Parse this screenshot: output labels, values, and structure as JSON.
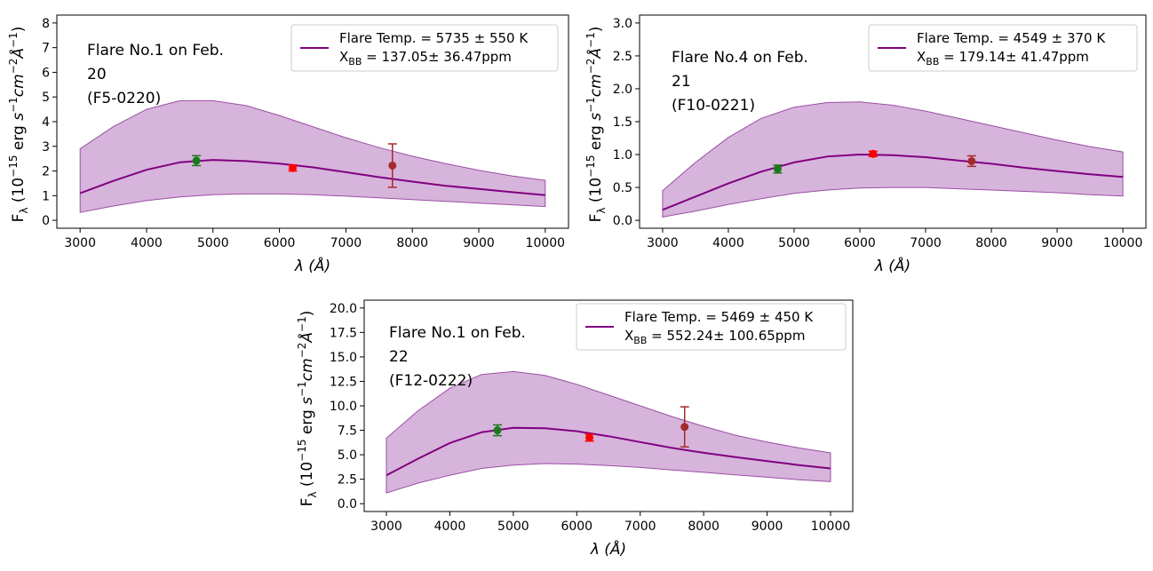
{
  "chart_data": [
    {
      "type": "line",
      "xlabel": "λ (Å)",
      "ylabel_html": "F_λ (10^-15 erg s^-1 cm^-2 Å^-1)",
      "ylabel_parts": [
        "F",
        "λ",
        " (10",
        "−15",
        " erg ",
        "s",
        "−1",
        "cm",
        "−2",
        "Å",
        "−1",
        ")"
      ],
      "xlim": [
        3000,
        10000
      ],
      "ylim": [
        0,
        8
      ],
      "xticks": [
        3000,
        4000,
        5000,
        6000,
        7000,
        8000,
        9000,
        10000
      ],
      "yticks": [
        0,
        1,
        2,
        3,
        4,
        5,
        6,
        7,
        8
      ],
      "yticks_labels": [
        "0",
        "1",
        "2",
        "3",
        "4",
        "5",
        "6",
        "7",
        "8"
      ],
      "annotation": [
        "Flare No.1 on Feb.",
        "20",
        "(F5-0220)"
      ],
      "legend": {
        "line1": "Flare Temp. = 5735 ± 550 K",
        "line2_prefix": "X",
        "line2_sub": "BB",
        "line2_rest": " = 137.05± 36.47ppm",
        "loc": "top-right"
      },
      "line": {
        "x": [
          3000,
          3500,
          4000,
          4500,
          5000,
          5500,
          6000,
          6500,
          7000,
          7500,
          8000,
          8500,
          9000,
          9500,
          10000
        ],
        "y": [
          1.1,
          1.6,
          2.05,
          2.35,
          2.45,
          2.4,
          2.3,
          2.15,
          1.95,
          1.75,
          1.57,
          1.4,
          1.27,
          1.14,
          1.02
        ]
      },
      "band": {
        "x": [
          3000,
          3500,
          4000,
          4500,
          5000,
          5500,
          6000,
          6500,
          7000,
          7500,
          8000,
          8500,
          9000,
          9500,
          10000
        ],
        "upper": [
          2.9,
          3.8,
          4.5,
          4.85,
          4.85,
          4.65,
          4.25,
          3.8,
          3.35,
          2.95,
          2.6,
          2.3,
          2.03,
          1.8,
          1.62
        ],
        "lower": [
          0.32,
          0.58,
          0.8,
          0.95,
          1.04,
          1.07,
          1.07,
          1.04,
          0.98,
          0.91,
          0.84,
          0.77,
          0.7,
          0.63,
          0.56
        ]
      },
      "points": [
        {
          "x": 4750,
          "y": 2.42,
          "err": 0.2,
          "color": "#1a7a1a"
        },
        {
          "x": 6200,
          "y": 2.12,
          "err": 0.12,
          "color": "#ff0000"
        },
        {
          "x": 7700,
          "y": 2.22,
          "err": 0.88,
          "color": "#a52a2a"
        }
      ]
    },
    {
      "type": "line",
      "xlabel": "λ (Å)",
      "xlim": [
        3000,
        10000
      ],
      "ylim": [
        0,
        3.0
      ],
      "xticks": [
        3000,
        4000,
        5000,
        6000,
        7000,
        8000,
        9000,
        10000
      ],
      "yticks": [
        0,
        0.5,
        1.0,
        1.5,
        2.0,
        2.5,
        3.0
      ],
      "yticks_labels": [
        "0.0",
        "0.5",
        "1.0",
        "1.5",
        "2.0",
        "2.5",
        "3.0"
      ],
      "annotation": [
        "Flare No.4 on Feb.",
        "21",
        "(F10-0221)"
      ],
      "legend": {
        "line1": "Flare Temp. = 4549 ± 370 K",
        "line2_prefix": "X",
        "line2_sub": "BB",
        "line2_rest": " = 179.14± 41.47ppm",
        "loc": "top-right"
      },
      "line": {
        "x": [
          3000,
          3500,
          4000,
          4500,
          5000,
          5500,
          6000,
          6500,
          7000,
          7500,
          8000,
          8500,
          9000,
          9500,
          10000
        ],
        "y": [
          0.16,
          0.36,
          0.56,
          0.74,
          0.88,
          0.97,
          1.0,
          0.99,
          0.96,
          0.91,
          0.86,
          0.8,
          0.75,
          0.7,
          0.66
        ]
      },
      "band": {
        "x": [
          3000,
          3500,
          4000,
          4500,
          5000,
          5500,
          6000,
          6500,
          7000,
          7500,
          8000,
          8500,
          9000,
          9500,
          10000
        ],
        "upper": [
          0.45,
          0.88,
          1.26,
          1.55,
          1.72,
          1.79,
          1.8,
          1.75,
          1.66,
          1.55,
          1.44,
          1.33,
          1.22,
          1.12,
          1.04
        ],
        "lower": [
          0.05,
          0.14,
          0.24,
          0.33,
          0.41,
          0.46,
          0.49,
          0.5,
          0.5,
          0.48,
          0.46,
          0.44,
          0.42,
          0.39,
          0.37
        ]
      },
      "points": [
        {
          "x": 4750,
          "y": 0.78,
          "err": 0.06,
          "color": "#1a7a1a"
        },
        {
          "x": 6200,
          "y": 1.01,
          "err": 0.04,
          "color": "#ff0000"
        },
        {
          "x": 7700,
          "y": 0.9,
          "err": 0.08,
          "color": "#a52a2a"
        }
      ]
    },
    {
      "type": "line",
      "xlabel": "λ (Å)",
      "xlim": [
        3000,
        10000
      ],
      "ylim": [
        0,
        20.0
      ],
      "xticks": [
        3000,
        4000,
        5000,
        6000,
        7000,
        8000,
        9000,
        10000
      ],
      "yticks": [
        0,
        2.5,
        5.0,
        7.5,
        10.0,
        12.5,
        15.0,
        17.5,
        20.0
      ],
      "yticks_labels": [
        "0.0",
        "2.5",
        "5.0",
        "7.5",
        "10.0",
        "12.5",
        "15.0",
        "17.5",
        "20.0"
      ],
      "annotation": [
        "Flare No.1 on Feb.",
        "22",
        "(F12-0222)"
      ],
      "legend": {
        "line1": "Flare Temp. = 5469 ± 450 K",
        "line2_prefix": "X",
        "line2_sub": "BB",
        "line2_rest": " = 552.24± 100.65ppm",
        "loc": "top-right"
      },
      "line": {
        "x": [
          3000,
          3500,
          4000,
          4500,
          5000,
          5500,
          6000,
          6500,
          7000,
          7500,
          8000,
          8500,
          9000,
          9500,
          10000
        ],
        "y": [
          2.9,
          4.6,
          6.2,
          7.3,
          7.75,
          7.7,
          7.4,
          6.9,
          6.3,
          5.7,
          5.2,
          4.75,
          4.35,
          3.95,
          3.6
        ]
      },
      "band": {
        "x": [
          3000,
          3500,
          4000,
          4500,
          5000,
          5500,
          6000,
          6500,
          7000,
          7500,
          8000,
          8500,
          9000,
          9500,
          10000
        ],
        "upper": [
          6.7,
          9.5,
          11.8,
          13.2,
          13.5,
          13.1,
          12.2,
          11.1,
          10.0,
          8.9,
          7.9,
          7.0,
          6.3,
          5.7,
          5.2
        ],
        "lower": [
          1.1,
          2.1,
          2.9,
          3.6,
          3.95,
          4.1,
          4.05,
          3.9,
          3.7,
          3.45,
          3.2,
          2.95,
          2.7,
          2.45,
          2.25
        ]
      },
      "points": [
        {
          "x": 4750,
          "y": 7.5,
          "err": 0.55,
          "color": "#1a7a1a"
        },
        {
          "x": 6200,
          "y": 6.75,
          "err": 0.35,
          "color": "#ff0000"
        },
        {
          "x": 7700,
          "y": 7.85,
          "err": 2.05,
          "color": "#a52a2a"
        }
      ]
    }
  ]
}
